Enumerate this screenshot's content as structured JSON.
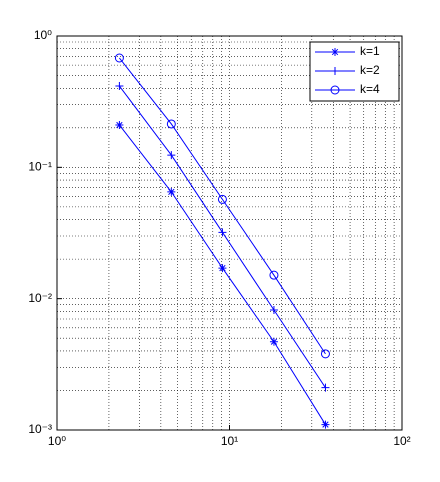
{
  "chart_data": {
    "type": "line",
    "x": [
      2.3,
      4.6,
      9.1,
      18.1,
      36
    ],
    "series": [
      {
        "name": "k=1",
        "color": "#0000ff",
        "marker": "asterisk",
        "values": [
          0.21,
          0.065,
          0.0171,
          0.0047,
          0.0011
        ]
      },
      {
        "name": "k=2",
        "color": "#0000ff",
        "marker": "plus",
        "values": [
          0.416,
          0.124,
          0.032,
          0.0082,
          0.0021
        ]
      },
      {
        "name": "k=4",
        "color": "#0000ff",
        "marker": "circle",
        "values": [
          0.68,
          0.214,
          0.057,
          0.0151,
          0.0038
        ]
      }
    ],
    "xscale": "log",
    "yscale": "log",
    "xlim": [
      1,
      100
    ],
    "ylim": [
      0.001,
      1
    ],
    "xticks": [
      {
        "value": 1,
        "label": "10⁰"
      },
      {
        "value": 10,
        "label": "10¹"
      },
      {
        "value": 100,
        "label": "10²"
      }
    ],
    "yticks": [
      {
        "value": 0.001,
        "label": "10⁻³"
      },
      {
        "value": 0.01,
        "label": "10⁻²"
      },
      {
        "value": 0.1,
        "label": "10⁻¹"
      },
      {
        "value": 1,
        "label": "10⁰"
      }
    ],
    "grid": true,
    "minor_grid": true,
    "legend": "upper right"
  }
}
